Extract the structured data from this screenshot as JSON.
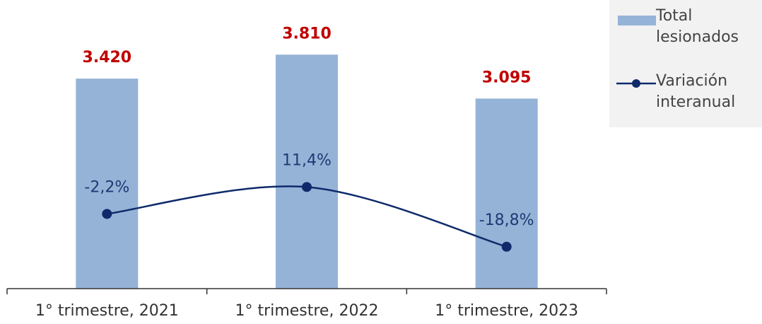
{
  "chart_data": {
    "type": "bar-line",
    "categories": [
      "1° trimestre, 2021",
      "1° trimestre, 2022",
      "1° trimestre, 2023"
    ],
    "series": [
      {
        "name": "Total lesionados",
        "type": "bar",
        "color": "#95b3d7",
        "label_color": "#c00000",
        "values": [
          3420,
          3810,
          3095
        ],
        "value_labels": [
          "3.420",
          "3.810",
          "3.095"
        ]
      },
      {
        "name": "Variación interanual",
        "type": "line",
        "axis": "y2",
        "color": "#0f2a6b",
        "label_color": "#1f3a74",
        "values": [
          -2.2,
          11.4,
          -18.8
        ],
        "value_labels": [
          "-2,2%",
          "11,4%",
          "-18,8%"
        ]
      }
    ],
    "ylim": [
      0,
      4700
    ],
    "y2lim": [
      -40,
      106
    ],
    "legend": "right"
  }
}
